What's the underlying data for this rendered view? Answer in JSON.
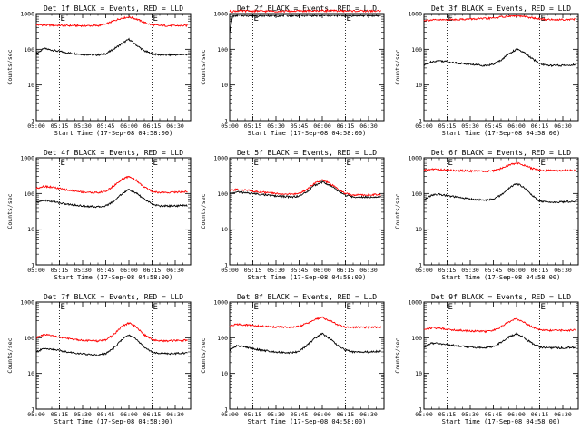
{
  "figure": {
    "tick_x_labels": [
      "05:00",
      "05:15",
      "05:30",
      "05:45",
      "06:00",
      "06:15",
      "06:30"
    ],
    "tick_y_labels": [
      "1",
      "10",
      "100",
      "1000"
    ],
    "colors": {
      "events": "#000000",
      "lld": "#ff0000",
      "axes": "#000000",
      "dotted": "#000000"
    },
    "flag_letters": [
      "E",
      "E"
    ]
  },
  "chart_data": [
    {
      "type": "line",
      "title": "Det 1f BLACK = Events, RED = LLD",
      "xlabel": "Start Time (17-Sep-08 04:58:00)",
      "ylabel": "Counts/sec",
      "yscale": "log",
      "ylim": [
        1,
        1000
      ],
      "xlim": [
        "05:00",
        "06:40"
      ],
      "vlines": [
        "05:15",
        "06:15"
      ],
      "series": [
        {
          "name": "Events",
          "color": "#000000",
          "x": [
            "05:00",
            "05:05",
            "05:10",
            "05:20",
            "05:30",
            "05:40",
            "05:45",
            "05:50",
            "05:55",
            "06:00",
            "06:05",
            "06:10",
            "06:15",
            "06:20",
            "06:30",
            "06:38"
          ],
          "values": [
            75,
            105,
            95,
            80,
            72,
            70,
            75,
            100,
            140,
            190,
            130,
            90,
            75,
            70,
            70,
            72
          ]
        },
        {
          "name": "LLD",
          "color": "#ff0000",
          "x": [
            "05:00",
            "05:10",
            "05:20",
            "05:30",
            "05:40",
            "05:45",
            "05:50",
            "05:55",
            "06:00",
            "06:05",
            "06:10",
            "06:15",
            "06:20",
            "06:30",
            "06:38"
          ],
          "values": [
            480,
            470,
            460,
            455,
            460,
            500,
            620,
            740,
            800,
            700,
            560,
            480,
            460,
            455,
            460
          ]
        }
      ]
    },
    {
      "type": "line",
      "title": "Det 2f BLACK = Events, RED = LLD",
      "xlabel": "Start Time (17-Sep-08 04:58:00)",
      "ylabel": "Counts/sec",
      "yscale": "log",
      "ylim": [
        1,
        1000
      ],
      "xlim": [
        "05:00",
        "06:40"
      ],
      "vlines": [
        "05:15",
        "06:15"
      ],
      "series": [
        {
          "name": "Events",
          "color": "#000000",
          "x": [
            "05:00",
            "05:02",
            "05:05",
            "05:15",
            "05:30",
            "05:45",
            "06:00",
            "06:15",
            "06:30",
            "06:38"
          ],
          "values": [
            300,
            850,
            880,
            870,
            870,
            875,
            870,
            870,
            875,
            870
          ]
        },
        {
          "name": "LLD",
          "color": "#ff0000",
          "x": [
            "05:00",
            "05:05",
            "05:15",
            "05:30",
            "05:45",
            "06:00",
            "06:15",
            "06:30",
            "06:38"
          ],
          "values": [
            1150,
            1180,
            1170,
            1160,
            1170,
            1200,
            1180,
            1170,
            1180
          ]
        }
      ]
    },
    {
      "type": "line",
      "title": "Det 3f BLACK = Events, RED = LLD",
      "xlabel": "Start Time (17-Sep-08 04:58:00)",
      "ylabel": "Counts/sec",
      "yscale": "log",
      "ylim": [
        1,
        1000
      ],
      "xlim": [
        "05:00",
        "06:40"
      ],
      "vlines": [
        "05:15",
        "06:15"
      ],
      "series": [
        {
          "name": "Events",
          "color": "#000000",
          "x": [
            "05:00",
            "05:05",
            "05:10",
            "05:20",
            "05:30",
            "05:40",
            "05:45",
            "05:50",
            "05:55",
            "06:00",
            "06:05",
            "06:10",
            "06:15",
            "06:20",
            "06:30",
            "06:38"
          ],
          "values": [
            35,
            45,
            48,
            42,
            38,
            35,
            38,
            50,
            75,
            100,
            80,
            55,
            40,
            35,
            35,
            37
          ]
        },
        {
          "name": "LLD",
          "color": "#ff0000",
          "x": [
            "05:00",
            "05:10",
            "05:20",
            "05:30",
            "05:40",
            "05:45",
            "05:50",
            "05:55",
            "06:00",
            "06:05",
            "06:10",
            "06:15",
            "06:20",
            "06:30",
            "06:38"
          ],
          "values": [
            650,
            660,
            680,
            700,
            720,
            750,
            800,
            850,
            860,
            820,
            760,
            700,
            680,
            680,
            690
          ]
        }
      ]
    },
    {
      "type": "line",
      "title": "Det 4f BLACK = Events, RED = LLD",
      "xlabel": "Start Time (17-Sep-08 04:58:00)",
      "ylabel": "Counts/sec",
      "yscale": "log",
      "ylim": [
        1,
        1000
      ],
      "xlim": [
        "05:00",
        "06:40"
      ],
      "vlines": [
        "05:15",
        "06:15"
      ],
      "series": [
        {
          "name": "Events",
          "color": "#000000",
          "x": [
            "05:00",
            "05:05",
            "05:10",
            "05:20",
            "05:30",
            "05:40",
            "05:45",
            "05:50",
            "05:55",
            "06:00",
            "06:05",
            "06:10",
            "06:15",
            "06:20",
            "06:30",
            "06:38"
          ],
          "values": [
            55,
            65,
            60,
            50,
            45,
            42,
            45,
            60,
            95,
            130,
            100,
            70,
            50,
            45,
            45,
            47
          ]
        },
        {
          "name": "LLD",
          "color": "#ff0000",
          "x": [
            "05:00",
            "05:05",
            "05:10",
            "05:20",
            "05:30",
            "05:40",
            "05:45",
            "05:50",
            "05:55",
            "06:00",
            "06:05",
            "06:10",
            "06:15",
            "06:20",
            "06:30",
            "06:38"
          ],
          "values": [
            140,
            160,
            150,
            125,
            110,
            105,
            115,
            160,
            240,
            300,
            230,
            150,
            115,
            105,
            110,
            112
          ]
        }
      ]
    },
    {
      "type": "line",
      "title": "Det 5f BLACK = Events, RED = LLD",
      "xlabel": "Start Time (17-Sep-08 04:58:00)",
      "ylabel": "Counts/sec",
      "yscale": "log",
      "ylim": [
        1,
        1000
      ],
      "xlim": [
        "05:00",
        "06:40"
      ],
      "vlines": [
        "05:15",
        "06:15"
      ],
      "series": [
        {
          "name": "Events",
          "color": "#000000",
          "x": [
            "05:00",
            "05:05",
            "05:10",
            "05:20",
            "05:30",
            "05:40",
            "05:45",
            "05:50",
            "05:55",
            "06:00",
            "06:05",
            "06:10",
            "06:15",
            "06:20",
            "06:30",
            "06:38"
          ],
          "values": [
            100,
            110,
            105,
            95,
            85,
            80,
            85,
            110,
            170,
            210,
            170,
            120,
            90,
            80,
            80,
            82
          ]
        },
        {
          "name": "LLD",
          "color": "#ff0000",
          "x": [
            "05:00",
            "05:05",
            "05:10",
            "05:20",
            "05:30",
            "05:40",
            "05:45",
            "05:50",
            "05:55",
            "06:00",
            "06:05",
            "06:10",
            "06:15",
            "06:20",
            "06:30",
            "06:38"
          ],
          "values": [
            120,
            130,
            125,
            110,
            100,
            95,
            100,
            130,
            195,
            235,
            190,
            135,
            100,
            92,
            92,
            95
          ]
        }
      ]
    },
    {
      "type": "line",
      "title": "Det 6f BLACK = Events, RED = LLD",
      "xlabel": "Start Time (17-Sep-08 04:58:00)",
      "ylabel": "Counts/sec",
      "yscale": "log",
      "ylim": [
        1,
        1000
      ],
      "xlim": [
        "05:00",
        "06:40"
      ],
      "vlines": [
        "05:15",
        "06:15"
      ],
      "series": [
        {
          "name": "Events",
          "color": "#000000",
          "x": [
            "05:00",
            "05:05",
            "05:10",
            "05:20",
            "05:30",
            "05:40",
            "05:45",
            "05:50",
            "05:55",
            "06:00",
            "06:05",
            "06:10",
            "06:15",
            "06:20",
            "06:30",
            "06:38"
          ],
          "values": [
            65,
            90,
            95,
            80,
            70,
            65,
            70,
            90,
            140,
            190,
            150,
            90,
            60,
            58,
            58,
            60
          ]
        },
        {
          "name": "LLD",
          "color": "#ff0000",
          "x": [
            "05:00",
            "05:05",
            "05:10",
            "05:20",
            "05:30",
            "05:40",
            "05:45",
            "05:50",
            "05:55",
            "06:00",
            "06:05",
            "06:10",
            "06:15",
            "06:20",
            "06:30",
            "06:38"
          ],
          "values": [
            450,
            480,
            470,
            440,
            430,
            420,
            430,
            500,
            620,
            720,
            620,
            500,
            450,
            440,
            440,
            445
          ]
        }
      ]
    },
    {
      "type": "line",
      "title": "Det 7f BLACK = Events, RED = LLD",
      "xlabel": "Start Time (17-Sep-08 04:58:00)",
      "ylabel": "Counts/sec",
      "yscale": "log",
      "ylim": [
        1,
        1000
      ],
      "xlim": [
        "05:00",
        "06:40"
      ],
      "vlines": [
        "05:15",
        "06:15"
      ],
      "series": [
        {
          "name": "Events",
          "color": "#000000",
          "x": [
            "05:00",
            "05:05",
            "05:10",
            "05:20",
            "05:30",
            "05:40",
            "05:45",
            "05:50",
            "05:55",
            "06:00",
            "06:05",
            "06:10",
            "06:15",
            "06:20",
            "06:30",
            "06:38"
          ],
          "values": [
            40,
            50,
            48,
            40,
            35,
            33,
            36,
            50,
            85,
            120,
            90,
            55,
            40,
            36,
            36,
            38
          ]
        },
        {
          "name": "LLD",
          "color": "#ff0000",
          "x": [
            "05:00",
            "05:05",
            "05:10",
            "05:20",
            "05:30",
            "05:40",
            "05:45",
            "05:50",
            "05:55",
            "06:00",
            "06:05",
            "06:10",
            "06:15",
            "06:20",
            "06:30",
            "06:38"
          ],
          "values": [
            100,
            120,
            115,
            95,
            85,
            80,
            88,
            120,
            200,
            260,
            200,
            120,
            90,
            82,
            82,
            85
          ]
        }
      ]
    },
    {
      "type": "line",
      "title": "Det 8f BLACK = Events, RED = LLD",
      "xlabel": "Start Time (17-Sep-08 04:58:00)",
      "ylabel": "Counts/sec",
      "yscale": "log",
      "ylim": [
        1,
        1000
      ],
      "xlim": [
        "05:00",
        "06:40"
      ],
      "vlines": [
        "05:15",
        "06:15"
      ],
      "series": [
        {
          "name": "Events",
          "color": "#000000",
          "x": [
            "05:00",
            "05:05",
            "05:10",
            "05:20",
            "05:30",
            "05:40",
            "05:45",
            "05:50",
            "05:55",
            "06:00",
            "06:05",
            "06:10",
            "06:15",
            "06:20",
            "06:30",
            "06:38"
          ],
          "values": [
            45,
            60,
            55,
            45,
            40,
            38,
            42,
            60,
            95,
            130,
            95,
            60,
            45,
            40,
            40,
            42
          ]
        },
        {
          "name": "LLD",
          "color": "#ff0000",
          "x": [
            "05:00",
            "05:05",
            "05:10",
            "05:20",
            "05:30",
            "05:40",
            "05:45",
            "05:50",
            "05:55",
            "06:00",
            "06:05",
            "06:10",
            "06:15",
            "06:20",
            "06:30",
            "06:38"
          ],
          "values": [
            210,
            240,
            230,
            210,
            200,
            195,
            205,
            250,
            320,
            370,
            300,
            230,
            200,
            195,
            195,
            200
          ]
        }
      ]
    },
    {
      "type": "line",
      "title": "Det 9f BLACK = Events, RED = LLD",
      "xlabel": "Start Time (17-Sep-08 04:58:00)",
      "ylabel": "Counts/sec",
      "yscale": "log",
      "ylim": [
        1,
        1000
      ],
      "xlim": [
        "05:00",
        "06:40"
      ],
      "vlines": [
        "05:15",
        "06:15"
      ],
      "series": [
        {
          "name": "Events",
          "color": "#000000",
          "x": [
            "05:00",
            "05:05",
            "05:10",
            "05:20",
            "05:30",
            "05:40",
            "05:45",
            "05:50",
            "05:55",
            "06:00",
            "06:05",
            "06:10",
            "06:15",
            "06:20",
            "06:30",
            "06:38"
          ],
          "values": [
            55,
            70,
            68,
            60,
            55,
            52,
            56,
            75,
            105,
            130,
            100,
            70,
            55,
            52,
            52,
            54
          ]
        },
        {
          "name": "LLD",
          "color": "#ff0000",
          "x": [
            "05:00",
            "05:05",
            "05:10",
            "05:20",
            "05:30",
            "05:40",
            "05:45",
            "05:50",
            "05:55",
            "06:00",
            "06:05",
            "06:10",
            "06:15",
            "06:20",
            "06:30",
            "06:38"
          ],
          "values": [
            170,
            190,
            185,
            165,
            155,
            150,
            160,
            200,
            280,
            340,
            270,
            200,
            170,
            160,
            160,
            165
          ]
        }
      ]
    }
  ]
}
